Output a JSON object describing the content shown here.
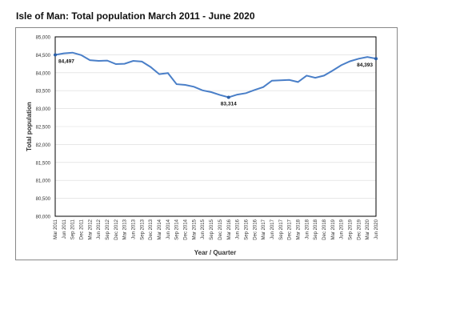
{
  "chart_data": {
    "type": "line",
    "title": "Isle of Man: Total population March 2011 - June 2020",
    "xlabel": "Year / Quarter",
    "ylabel": "Total population",
    "ylim": [
      80000,
      85000
    ],
    "yticks": [
      "80,000",
      "80,500",
      "81,000",
      "81,500",
      "82,000",
      "82,500",
      "83,000",
      "83,500",
      "84,000",
      "84,500",
      "85,000"
    ],
    "grid": true,
    "categories": [
      "Mar 2011",
      "Jun 2011",
      "Sep 2011",
      "Dec 2011",
      "Mar 2012",
      "Jun 2012",
      "Sep 2012",
      "Dec 2012",
      "Mar 2013",
      "Jun 2013",
      "Sep 2013",
      "Dec 2013",
      "Mar 2014",
      "Jun 2014",
      "Sep 2014",
      "Dec 2014",
      "Mar 2015",
      "Jun 2015",
      "Sep 2015",
      "Dec 2015",
      "Mar 2016",
      "Jun 2016",
      "Sep 2016",
      "Dec 2016",
      "Mar 2017",
      "Jun 2017",
      "Sep 2017",
      "Dec 2017",
      "Mar 2018",
      "Jun 2018",
      "Sep 2018",
      "Dec 2018",
      "Mar 2019",
      "Jun 2019",
      "Sep 2019",
      "Dec 2019",
      "Mar 2020",
      "Jun 2020"
    ],
    "series": [
      {
        "values": [
          84497,
          84540,
          84560,
          84490,
          84350,
          84330,
          84340,
          84240,
          84250,
          84330,
          84310,
          84160,
          83960,
          83990,
          83680,
          83660,
          83610,
          83510,
          83460,
          83380,
          83314,
          83390,
          83430,
          83520,
          83600,
          83780,
          83790,
          83800,
          83740,
          83920,
          83860,
          83920,
          84060,
          84210,
          84320,
          84390,
          84440,
          84393
        ],
        "color": "#4a7fc8"
      }
    ],
    "annotations": [
      {
        "index": 0,
        "label": "84,497"
      },
      {
        "index": 20,
        "label": "83,314"
      },
      {
        "index": 37,
        "label": "84,393"
      }
    ]
  }
}
